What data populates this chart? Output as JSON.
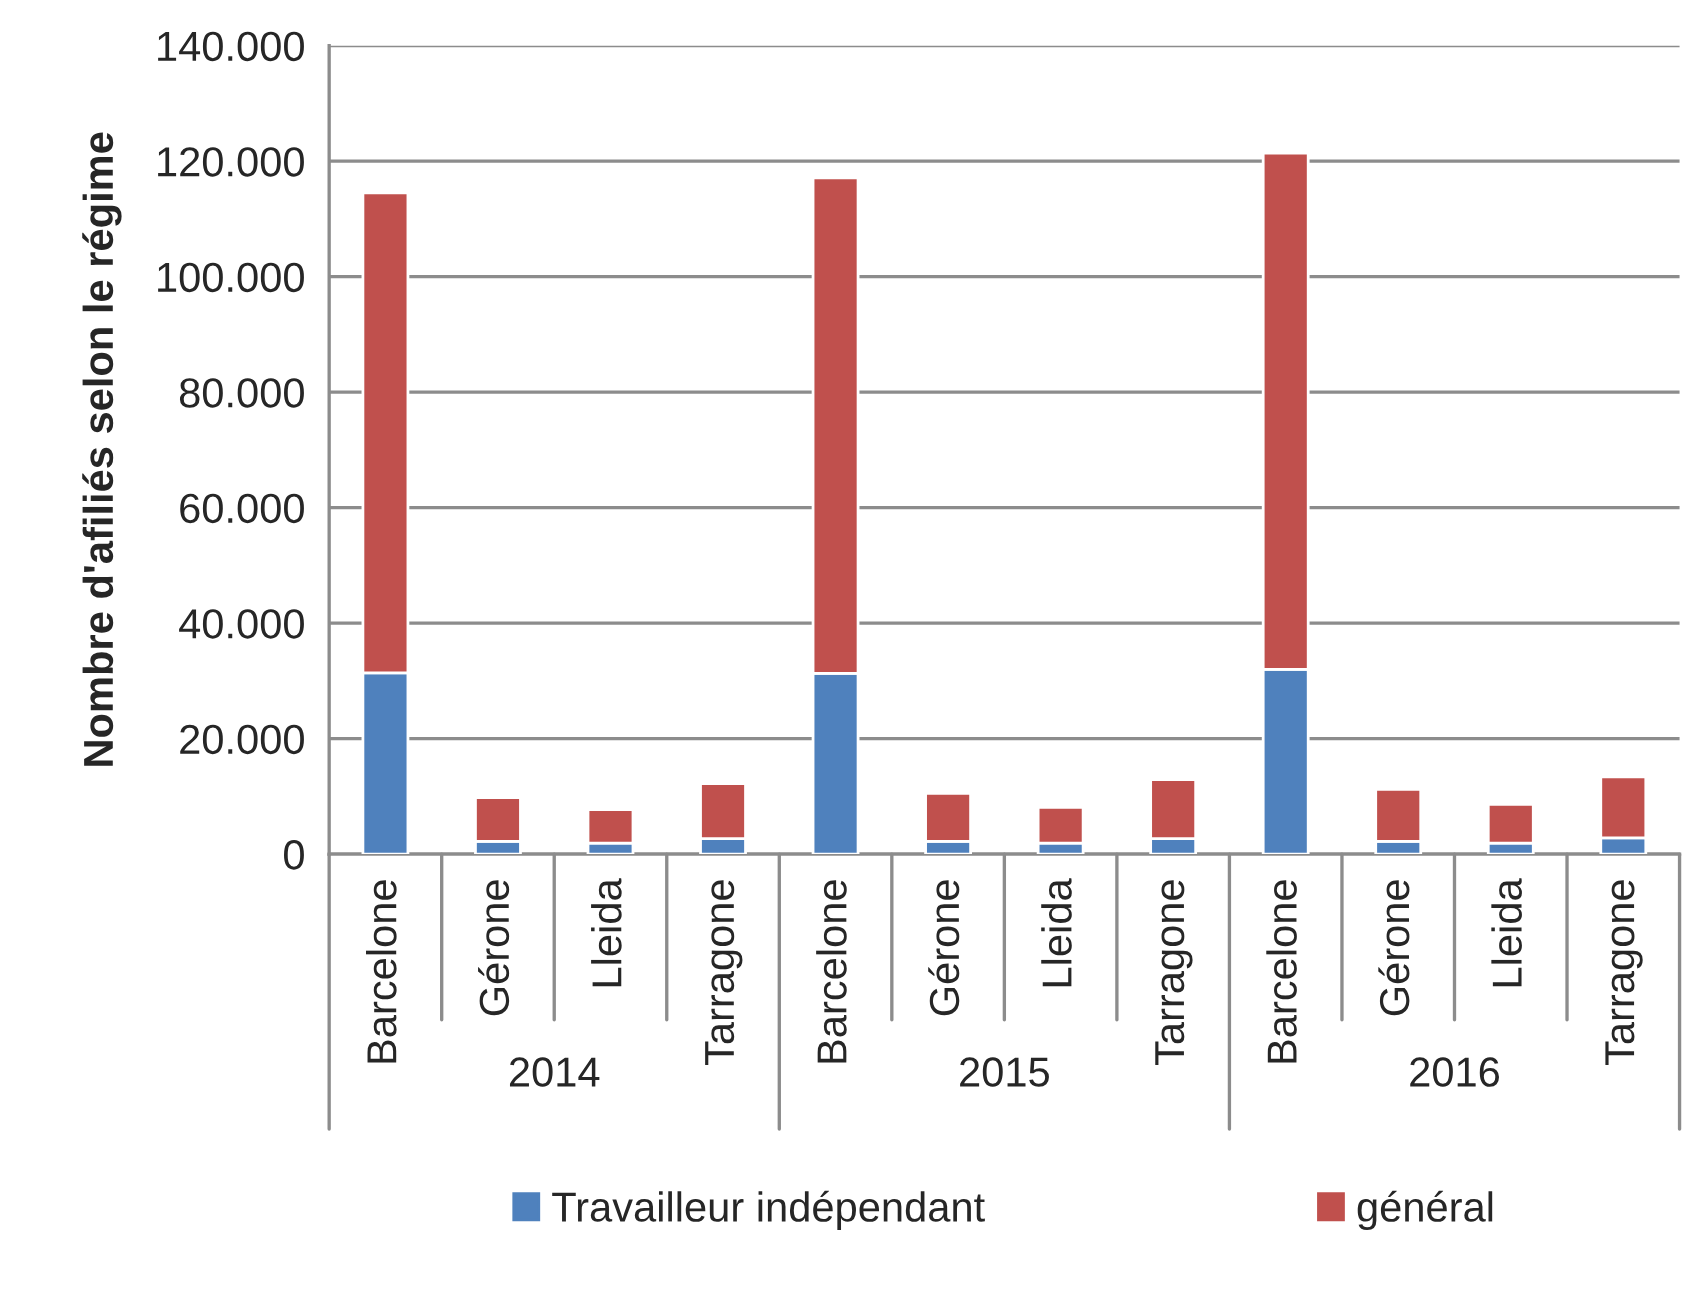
{
  "chart_data": {
    "type": "bar",
    "stacked": true,
    "ylabel": "Nombre d'afiliés selon le régime",
    "categories": [
      "Barcelone",
      "Gérone",
      "Lleida",
      "Tarragone",
      "Barcelone",
      "Gérone",
      "Lleida",
      "Tarragone",
      "Barcelone",
      "Gérone",
      "Lleida",
      "Tarragone"
    ],
    "annotations": [
      "2014",
      "2015",
      "2016"
    ],
    "series": [
      {
        "name": "Travailleur indépendant",
        "color": "#4f81bd",
        "values": [
          31400,
          2200,
          1900,
          2700,
          31300,
          2200,
          1900,
          2700,
          32000,
          2200,
          1900,
          2800
        ]
      },
      {
        "name": "général",
        "color": "#c0504d",
        "values": [
          83100,
          7600,
          5800,
          9500,
          85800,
          8300,
          6200,
          10200,
          89400,
          9000,
          6700,
          10600
        ]
      }
    ],
    "ylim": [
      0,
      140000
    ],
    "yticks": [
      {
        "value": 0,
        "label": "0"
      },
      {
        "value": 20000,
        "label": "20.000"
      },
      {
        "value": 40000,
        "label": "40.000"
      },
      {
        "value": 60000,
        "label": "60.000"
      },
      {
        "value": 80000,
        "label": "80.000"
      },
      {
        "value": 100000,
        "label": "100.000"
      },
      {
        "value": 120000,
        "label": "120.000"
      },
      {
        "value": 140000,
        "label": "140.000"
      }
    ],
    "grid": "y",
    "legend": "bottom"
  }
}
